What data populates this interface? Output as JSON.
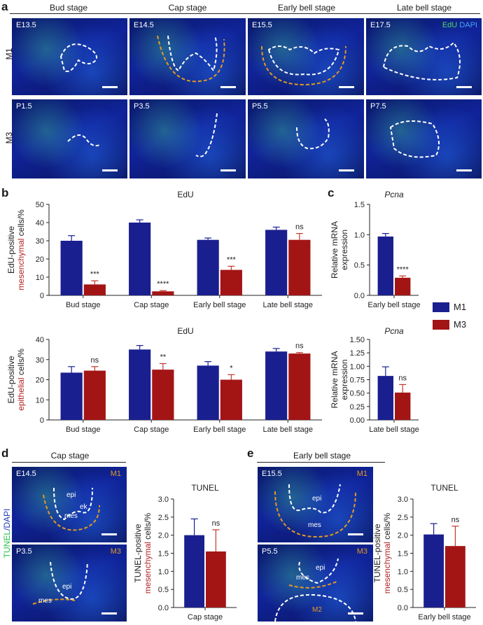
{
  "panel_a": {
    "letter": "a",
    "stages": [
      "Bud stage",
      "Cap stage",
      "Early bell stage",
      "Late bell stage"
    ],
    "rows": [
      "M1",
      "M3"
    ],
    "ages_m1": [
      "E13.5",
      "E14.5",
      "E15.5",
      "E17.5"
    ],
    "ages_m3": [
      "P1.5",
      "P3.5",
      "P5.5",
      "P7.5"
    ],
    "legend_edu": "EdU",
    "legend_dapi": "DAPI"
  },
  "panel_b": {
    "letter": "b"
  },
  "panel_c": {
    "letter": "c"
  },
  "panel_d": {
    "letter": "d",
    "stage": "Cap stage",
    "row_label_tunel": "TUNEL",
    "row_label_dapi": "/DAPI",
    "top": {
      "age": "E14.5",
      "tooth": "M1",
      "regions": [
        "epi",
        "ek",
        "mes"
      ]
    },
    "bottom": {
      "age": "P3.5",
      "tooth": "M3",
      "regions": [
        "epi",
        "mes"
      ]
    }
  },
  "panel_e": {
    "letter": "e",
    "stage": "Early bell stage",
    "top": {
      "age": "E15.5",
      "tooth": "M1",
      "regions": [
        "epi",
        "mes"
      ]
    },
    "bottom": {
      "age": "P5.5",
      "tooth": "M3",
      "regions": [
        "epi",
        "mes",
        "M2"
      ]
    }
  },
  "legend": {
    "items": [
      {
        "name": "M1",
        "color": "#1a1f8f"
      },
      {
        "name": "M3",
        "color": "#a31515"
      }
    ]
  },
  "colors": {
    "m1": "#1a1f8f",
    "m3": "#a31515",
    "error": "#1a1f8f",
    "error_m3": "#c0392b",
    "mes_text": "#b22222",
    "epi_text": "#b22222"
  },
  "chart_data": [
    {
      "id": "b_mes",
      "type": "bar",
      "title": "EdU",
      "ylabel_parts": [
        "EdU-positive",
        "mesenchymal",
        " cells/%"
      ],
      "categories": [
        "Bud stage",
        "Cap stage",
        "Early bell stage",
        "Late bell stage"
      ],
      "series": [
        {
          "name": "M1",
          "values": [
            30,
            40,
            30.5,
            36
          ],
          "errors": [
            2.8,
            1.5,
            1.0,
            1.5
          ]
        },
        {
          "name": "M3",
          "values": [
            6,
            2.2,
            14,
            30.5
          ],
          "errors": [
            2.0,
            0.4,
            2.0,
            3.5
          ]
        }
      ],
      "significance": [
        "***",
        "****",
        "***",
        "ns"
      ],
      "ylim": [
        0,
        50
      ],
      "yticks": [
        0,
        10,
        20,
        30,
        40,
        50
      ]
    },
    {
      "id": "b_epi",
      "type": "bar",
      "title": "EdU",
      "ylabel_parts": [
        "EdU-positive",
        "epithelial",
        " cells/%"
      ],
      "categories": [
        "Bud stage",
        "Cap stage",
        "Early bell stage",
        "Late bell stage"
      ],
      "series": [
        {
          "name": "M1",
          "values": [
            23.5,
            35,
            27,
            34
          ],
          "errors": [
            3.0,
            2.0,
            2.0,
            1.5
          ]
        },
        {
          "name": "M3",
          "values": [
            24.5,
            25,
            20,
            33
          ],
          "errors": [
            2.0,
            3.0,
            2.5,
            0.5
          ]
        }
      ],
      "significance": [
        "ns",
        "**",
        "*",
        "ns"
      ],
      "ylim": [
        0,
        40
      ],
      "yticks": [
        0,
        10,
        20,
        30,
        40
      ]
    },
    {
      "id": "c_early",
      "type": "bar",
      "title": "Pcna",
      "title_italic": true,
      "ylabel_parts": [
        "Relative mRNA",
        "expression"
      ],
      "categories": [
        "Early bell stage"
      ],
      "series": [
        {
          "name": "M1",
          "values": [
            0.97
          ],
          "errors": [
            0.05
          ]
        },
        {
          "name": "M3",
          "values": [
            0.29
          ],
          "errors": [
            0.03
          ]
        }
      ],
      "significance": [
        "****"
      ],
      "ylim": [
        0,
        1.5
      ],
      "yticks": [
        0.0,
        0.5,
        1.0,
        1.5
      ]
    },
    {
      "id": "c_late",
      "type": "bar",
      "title": "Pcna",
      "title_italic": true,
      "ylabel_parts": [
        "Relative mRNA",
        "expression"
      ],
      "categories": [
        "Late bell stage"
      ],
      "series": [
        {
          "name": "M1",
          "values": [
            0.82
          ],
          "errors": [
            0.17
          ]
        },
        {
          "name": "M3",
          "values": [
            0.51
          ],
          "errors": [
            0.15
          ]
        }
      ],
      "significance": [
        "ns"
      ],
      "ylim": [
        0,
        1.5
      ],
      "yticks": [
        0.0,
        0.25,
        0.5,
        0.75,
        1.0,
        1.25,
        1.5
      ]
    },
    {
      "id": "d_tunel",
      "type": "bar",
      "title": "TUNEL",
      "ylabel_parts": [
        "TUNEL-positive",
        "mesenchymal",
        " cells/%"
      ],
      "categories": [
        "Cap stage"
      ],
      "series": [
        {
          "name": "M1",
          "values": [
            2.0
          ],
          "errors": [
            0.45
          ]
        },
        {
          "name": "M3",
          "values": [
            1.55
          ],
          "errors": [
            0.6
          ]
        }
      ],
      "significance": [
        "ns"
      ],
      "ylim": [
        0,
        3.0
      ],
      "yticks": [
        0.0,
        0.5,
        1.0,
        1.5,
        2.0,
        2.5,
        3.0
      ]
    },
    {
      "id": "e_tunel",
      "type": "bar",
      "title": "TUNEL",
      "ylabel_parts": [
        "TUNEL-positive",
        "mesenchymal",
        " cells/%"
      ],
      "categories": [
        "Early bell stage"
      ],
      "series": [
        {
          "name": "M1",
          "values": [
            2.02
          ],
          "errors": [
            0.3
          ]
        },
        {
          "name": "M3",
          "values": [
            1.7
          ],
          "errors": [
            0.55
          ]
        }
      ],
      "significance": [
        "ns"
      ],
      "ylim": [
        0,
        3.0
      ],
      "yticks": [
        0.0,
        0.5,
        1.0,
        1.5,
        2.0,
        2.5,
        3.0
      ]
    }
  ]
}
